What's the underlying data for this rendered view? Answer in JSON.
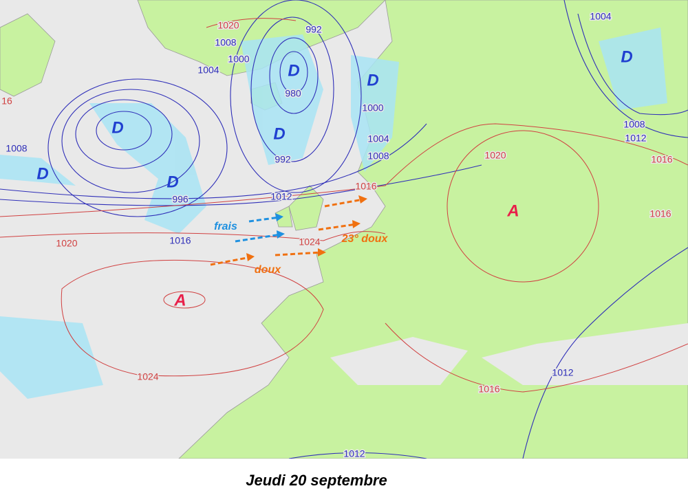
{
  "caption": "Jeudi 20 septembre",
  "pressure_centers": [
    "D",
    "D",
    "D",
    "D",
    "D",
    "D",
    "D",
    "A",
    "A"
  ],
  "isobar_labels": [
    1020,
    1008,
    1004,
    1000,
    992,
    980,
    992,
    1000,
    1004,
    1008,
    1012,
    996,
    1008,
    1004,
    1008,
    1012,
    1012,
    1012,
    16,
    1016,
    1020,
    1016,
    1016,
    1020,
    1024,
    1016,
    1024,
    1016
  ],
  "annotations": [
    "frais",
    "23° doux",
    "doux"
  ]
}
